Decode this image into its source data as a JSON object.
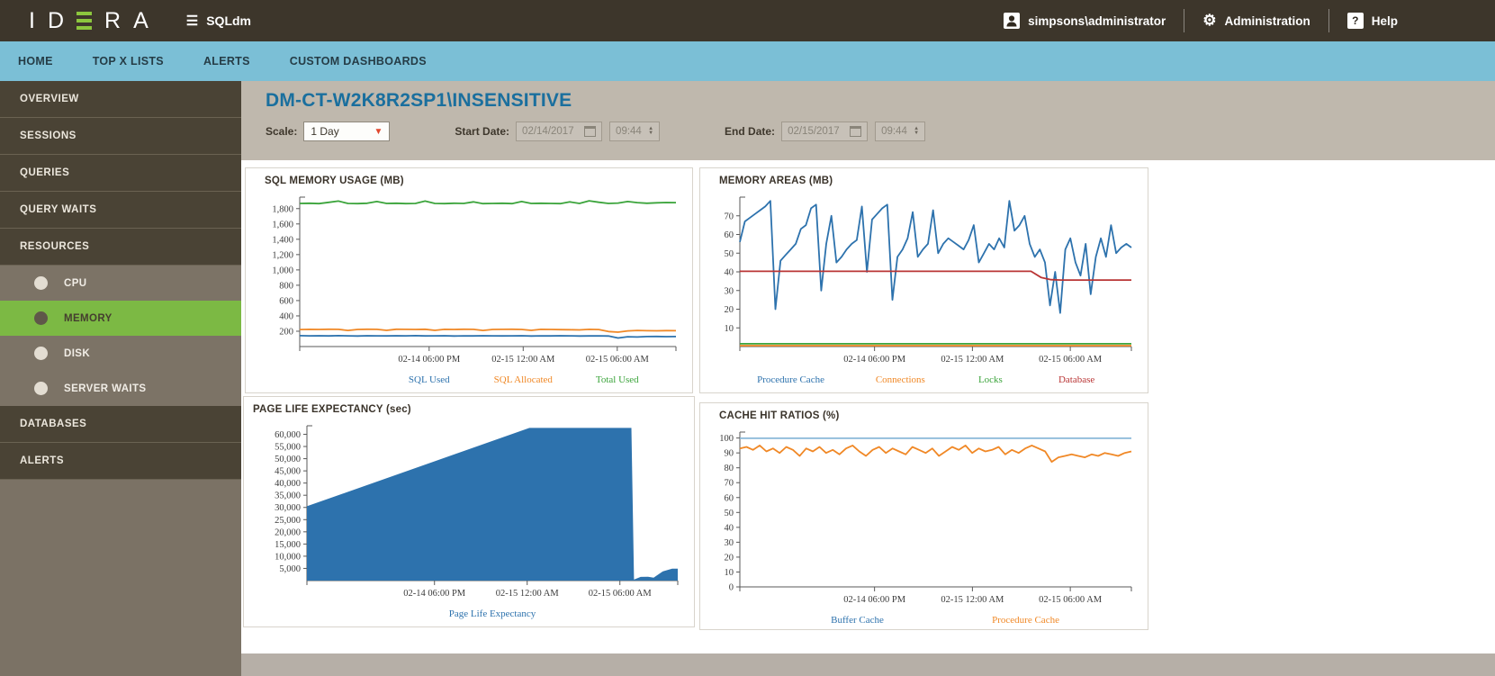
{
  "app": {
    "brand": "IDERA",
    "product": "SQLdm",
    "user": "simpsons\\administrator",
    "admin_label": "Administration",
    "help_label": "Help",
    "help_glyph": "?"
  },
  "nav": {
    "items": [
      {
        "label": "HOME"
      },
      {
        "label": "TOP X LISTS"
      },
      {
        "label": "ALERTS"
      },
      {
        "label": "CUSTOM DASHBOARDS"
      }
    ]
  },
  "sidebar": {
    "items": [
      {
        "label": "OVERVIEW",
        "type": "main"
      },
      {
        "label": "SESSIONS",
        "type": "main"
      },
      {
        "label": "QUERIES",
        "type": "main"
      },
      {
        "label": "QUERY WAITS",
        "type": "main"
      },
      {
        "label": "RESOURCES",
        "type": "main"
      },
      {
        "label": "CPU",
        "type": "sub"
      },
      {
        "label": "MEMORY",
        "type": "sub",
        "active": true
      },
      {
        "label": "DISK",
        "type": "sub"
      },
      {
        "label": "SERVER WAITS",
        "type": "sub"
      },
      {
        "label": "DATABASES",
        "type": "main"
      },
      {
        "label": "ALERTS",
        "type": "main"
      }
    ]
  },
  "header": {
    "title": "DM-CT-W2K8R2SP1\\INSENSITIVE",
    "scale_label": "Scale:",
    "scale_value": "1 Day",
    "start_date_label": "Start Date:",
    "start_date": "02/14/2017",
    "start_time": "09:44",
    "end_date_label": "End Date:",
    "end_date": "02/15/2017",
    "end_time": "09:44"
  },
  "colors": {
    "accent_green": "#8cc63e",
    "nav_blue": "#7bbfd6",
    "title_blue": "#1a6f9e",
    "series_blue": "#2d72ad",
    "series_orange": "#f08826",
    "series_green": "#3ba43b",
    "series_red": "#b93535",
    "series_lightblue": "#8ab8d8"
  },
  "chart_data": [
    {
      "type": "line",
      "title": "SQL MEMORY USAGE (MB)",
      "ylim": [
        0,
        1950
      ],
      "y_ticks": [
        200,
        400,
        600,
        800,
        1000,
        1200,
        1400,
        1600,
        1800
      ],
      "y_format": "comma",
      "x_ticks": [
        {
          "pos": 0.344,
          "label": "02-14 06:00 PM"
        },
        {
          "pos": 0.594,
          "label": "02-15 12:00 AM"
        },
        {
          "pos": 0.844,
          "label": "02-15 06:00 AM"
        }
      ],
      "series": [
        {
          "name": "SQL Used",
          "color": "#2d72ad",
          "legend_x": 0.344,
          "values": [
            142,
            140,
            141,
            139,
            142,
            140,
            138,
            141,
            140,
            139,
            141,
            140,
            142,
            139,
            140,
            141,
            138,
            140,
            139,
            141,
            140,
            139,
            140,
            141,
            138,
            140,
            139,
            141,
            140,
            138,
            139,
            140,
            137,
            112,
            128,
            125,
            130,
            131,
            129,
            130
          ]
        },
        {
          "name": "SQL Allocated",
          "color": "#f08826",
          "legend_x": 0.594,
          "values": [
            222,
            224,
            223,
            225,
            224,
            210,
            223,
            225,
            224,
            212,
            225,
            224,
            223,
            225,
            211,
            224,
            223,
            225,
            224,
            210,
            223,
            224,
            225,
            223,
            212,
            224,
            223,
            221,
            220,
            217,
            224,
            222,
            196,
            188,
            204,
            210,
            207,
            206,
            208,
            207
          ]
        },
        {
          "name": "Total Used",
          "color": "#3ba43b",
          "legend_x": 0.844,
          "values": [
            1868,
            1870,
            1866,
            1882,
            1898,
            1868,
            1866,
            1870,
            1893,
            1868,
            1870,
            1866,
            1868,
            1898,
            1868,
            1866,
            1870,
            1868,
            1888,
            1866,
            1868,
            1870,
            1866,
            1893,
            1868,
            1870,
            1868,
            1866,
            1888,
            1868,
            1902,
            1883,
            1868,
            1873,
            1893,
            1878,
            1870,
            1876,
            1880,
            1878
          ]
        }
      ]
    },
    {
      "type": "line",
      "title": "MEMORY AREAS (MB)",
      "ylim": [
        0,
        80
      ],
      "y_ticks": [
        10,
        20,
        30,
        40,
        50,
        60,
        70
      ],
      "y_format": "plain",
      "x_ticks": [
        {
          "pos": 0.344,
          "label": "02-14 06:00 PM"
        },
        {
          "pos": 0.594,
          "label": "02-15 12:00 AM"
        },
        {
          "pos": 0.844,
          "label": "02-15 06:00 AM"
        }
      ],
      "series": [
        {
          "name": "Procedure Cache",
          "color": "#2d72ad",
          "legend_x": 0.13,
          "values": [
            56,
            67,
            69,
            71,
            73,
            75,
            78,
            20,
            46,
            49,
            52,
            55,
            63,
            65,
            74,
            76,
            30,
            55,
            70,
            45,
            48,
            52,
            55,
            57,
            75,
            40,
            68,
            71,
            74,
            76,
            25,
            48,
            52,
            58,
            72,
            48,
            52,
            55,
            73,
            50,
            55,
            58,
            56,
            54,
            52,
            57,
            65,
            45,
            50,
            55,
            52,
            58,
            53,
            78,
            62,
            65,
            70,
            55,
            48,
            52,
            45,
            22,
            40,
            18,
            52,
            58,
            45,
            38,
            55,
            28,
            48,
            58,
            48,
            65,
            50,
            53,
            55,
            53
          ]
        },
        {
          "name": "Connections",
          "color": "#f08826",
          "legend_x": 0.41,
          "values": [
            0.5,
            0.5
          ]
        },
        {
          "name": "Locks",
          "color": "#3ba43b",
          "legend_x": 0.64,
          "values": [
            1.5,
            1.5
          ]
        },
        {
          "name": "Database",
          "color": "#b93535",
          "legend_x": 0.86,
          "values": [
            40.3,
            40.3,
            40.3,
            40.3,
            40.3,
            40.3,
            40.3,
            40.3,
            40.3,
            40.3,
            40.3,
            40.3,
            40.3,
            40.3,
            40.3,
            40.3,
            40.3,
            40.3,
            40.3,
            40.3,
            40.3,
            40.3,
            40.3,
            40.3,
            40.3,
            40.3,
            40.3,
            40.3,
            40.3,
            40.3,
            37,
            35.8,
            35.6,
            35.6,
            35.6,
            35.6,
            35.6,
            35.6,
            35.6,
            35.6
          ]
        }
      ]
    },
    {
      "type": "area",
      "title": "PAGE LIFE EXPECTANCY (sec)",
      "ylim": [
        0,
        63500
      ],
      "y_ticks": [
        5000,
        10000,
        15000,
        20000,
        25000,
        30000,
        35000,
        40000,
        45000,
        50000,
        55000,
        60000
      ],
      "y_format": "comma",
      "x_ticks": [
        {
          "pos": 0.344,
          "label": "02-14 06:00 PM"
        },
        {
          "pos": 0.594,
          "label": "02-15 12:00 AM"
        },
        {
          "pos": 0.844,
          "label": "02-15 06:00 AM"
        }
      ],
      "series": [
        {
          "name": "Page Life Expectancy",
          "color": "#2d72ad",
          "legend_x": 0.5,
          "points": [
            [
              0,
              30500
            ],
            [
              0.6,
              62600
            ],
            [
              0.875,
              62600
            ],
            [
              0.882,
              400
            ],
            [
              0.9,
              1500
            ],
            [
              0.92,
              1600
            ],
            [
              0.935,
              1200
            ],
            [
              0.96,
              3800
            ],
            [
              0.985,
              4900
            ],
            [
              1,
              4900
            ]
          ]
        }
      ]
    },
    {
      "type": "line",
      "title": "CACHE HIT RATIOS (%)",
      "ylim": [
        0,
        104
      ],
      "y_ticks": [
        0,
        10,
        20,
        30,
        40,
        50,
        60,
        70,
        80,
        90,
        100
      ],
      "y_format": "plain",
      "x_ticks": [
        {
          "pos": 0.344,
          "label": "02-14 06:00 PM"
        },
        {
          "pos": 0.594,
          "label": "02-15 12:00 AM"
        },
        {
          "pos": 0.844,
          "label": "02-15 06:00 AM"
        }
      ],
      "series": [
        {
          "name": "Buffer Cache",
          "color": "#8ab8d8",
          "legend_color": "#2d72ad",
          "legend_x": 0.3,
          "values": [
            99.8,
            99.8
          ]
        },
        {
          "name": "Procedure Cache",
          "color": "#f08826",
          "legend_x": 0.73,
          "values": [
            93,
            94,
            92,
            95,
            91,
            93,
            90,
            94,
            92,
            88,
            93,
            91,
            94,
            90,
            92,
            89,
            93,
            95,
            91,
            88,
            92,
            94,
            90,
            93,
            91,
            89,
            94,
            92,
            90,
            93,
            88,
            91,
            94,
            92,
            95,
            90,
            93,
            91,
            92,
            94,
            89,
            92,
            90,
            93,
            95,
            93,
            91,
            84,
            87,
            88,
            89,
            88,
            87,
            89,
            88,
            90,
            89,
            88,
            90,
            91
          ]
        }
      ]
    }
  ]
}
